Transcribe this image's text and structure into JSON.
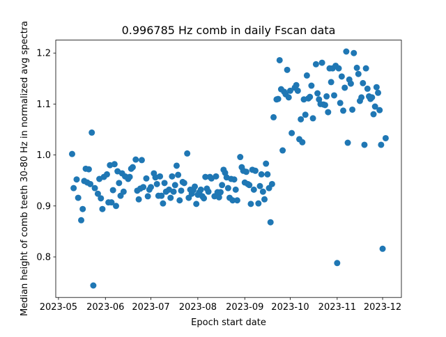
{
  "chart_data": {
    "type": "scatter",
    "title": "0.996785 Hz comb in daily Fscan data",
    "x_label": "Epoch start date",
    "y_label": "Median height of comb teeth 30-80 Hz in normalized avg spectra",
    "color": "#1f77b4",
    "grid": false,
    "xlim": [
      -1.8,
      226.4
    ],
    "ylim": [
      0.7205,
      1.2254
    ],
    "xticks": [
      {
        "value": 0,
        "label": "2023-05"
      },
      {
        "value": 31,
        "label": "2023-06"
      },
      {
        "value": 61,
        "label": "2023-07"
      },
      {
        "value": 92,
        "label": "2023-08"
      },
      {
        "value": 123,
        "label": "2023-09"
      },
      {
        "value": 153,
        "label": "2023-10"
      },
      {
        "value": 184,
        "label": "2023-11"
      },
      {
        "value": 214,
        "label": "2023-12"
      }
    ],
    "yticks": [
      0.8,
      0.9,
      {
        "value": 1,
        "label": "1.0"
      },
      1.1,
      1.2
    ],
    "x": [
      9,
      10,
      12,
      13,
      15,
      16,
      17,
      18,
      19,
      20,
      21,
      22,
      23,
      24,
      26,
      27,
      28,
      29,
      30,
      32,
      33,
      34,
      35,
      36,
      37,
      38,
      39,
      40,
      41,
      42,
      43,
      44,
      46,
      47,
      48,
      49,
      51,
      52,
      53,
      54,
      55,
      56,
      58,
      59,
      60,
      61,
      63,
      64,
      65,
      66,
      67,
      68,
      69,
      70,
      71,
      73,
      74,
      75,
      76,
      77,
      78,
      79,
      80,
      81,
      82,
      83,
      85,
      86,
      87,
      88,
      89,
      90,
      91,
      92,
      93,
      94,
      95,
      96,
      97,
      98,
      99,
      100,
      101,
      103,
      104,
      105,
      106,
      107,
      108,
      109,
      110,
      111,
      112,
      113,
      114,
      115,
      116,
      117,
      118,
      120,
      121,
      122,
      123,
      124,
      125,
      126,
      127,
      128,
      129,
      130,
      132,
      133,
      134,
      135,
      136,
      137,
      138,
      139,
      140,
      141,
      142,
      144,
      145,
      146,
      147,
      148,
      149,
      150,
      151,
      152,
      153,
      154,
      156,
      157,
      158,
      159,
      160,
      161,
      162,
      163,
      164,
      165,
      166,
      167,
      168,
      170,
      171,
      172,
      173,
      174,
      175,
      176,
      177,
      178,
      179,
      180,
      181,
      182,
      183,
      184,
      185,
      186,
      187,
      188,
      189,
      190,
      191,
      192,
      193,
      194,
      195,
      197,
      198,
      199,
      200,
      201,
      202,
      203,
      204,
      205,
      206,
      207,
      208,
      209,
      210,
      211,
      212,
      213,
      214,
      216
    ],
    "values": [
      1.002,
      0.935,
      0.952,
      0.916,
      0.872,
      0.894,
      0.949,
      0.973,
      0.946,
      0.972,
      0.943,
      1.044,
      0.744,
      0.935,
      0.924,
      0.953,
      0.915,
      0.894,
      0.957,
      0.962,
      0.907,
      0.98,
      0.907,
      0.931,
      0.982,
      0.9,
      0.968,
      0.945,
      0.92,
      0.964,
      0.928,
      0.958,
      0.953,
      0.957,
      0.973,
      0.976,
      0.991,
      0.93,
      0.913,
      0.934,
      0.99,
      0.937,
      0.954,
      0.919,
      0.932,
      0.937,
      0.964,
      0.956,
      0.943,
      0.92,
      0.958,
      0.92,
      0.905,
      0.945,
      0.928,
      0.932,
      0.916,
      0.958,
      0.928,
      0.941,
      0.979,
      0.961,
      0.911,
      0.93,
      0.947,
      0.945,
      1.003,
      0.916,
      0.932,
      0.924,
      0.931,
      0.938,
      0.904,
      0.922,
      0.927,
      0.932,
      0.919,
      0.915,
      0.957,
      0.934,
      0.928,
      0.957,
      0.954,
      0.919,
      0.958,
      0.927,
      0.917,
      0.927,
      0.941,
      0.971,
      0.965,
      0.956,
      0.935,
      0.916,
      0.953,
      0.911,
      0.952,
      0.932,
      0.911,
      0.996,
      0.976,
      0.969,
      0.946,
      0.967,
      0.943,
      0.941,
      0.904,
      0.971,
      0.932,
      0.969,
      0.905,
      0.939,
      0.962,
      0.928,
      0.913,
      0.983,
      0.962,
      0.935,
      0.868,
      0.943,
      1.074,
      1.109,
      1.11,
      1.186,
      1.129,
      1.009,
      1.124,
      1.119,
      1.167,
      1.113,
      1.126,
      1.043,
      1.132,
      1.137,
      1.126,
      1.031,
      1.07,
      1.025,
      1.109,
      1.079,
      1.156,
      1.111,
      1.114,
      1.136,
      1.072,
      1.178,
      1.121,
      1.109,
      1.1,
      1.181,
      1.099,
      1.098,
      1.115,
      1.084,
      1.17,
      1.143,
      1.17,
      1.117,
      1.175,
      0.788,
      1.17,
      1.102,
      1.154,
      1.087,
      1.132,
      1.203,
      1.024,
      1.148,
      1.14,
      1.089,
      1.2,
      1.171,
      1.159,
      1.106,
      1.113,
      1.141,
      1.02,
      1.17,
      1.13,
      1.115,
      1.11,
      1.113,
      1.08,
      1.095,
      1.133,
      1.122,
      1.088,
      1.02,
      0.816,
      1.033
    ]
  }
}
